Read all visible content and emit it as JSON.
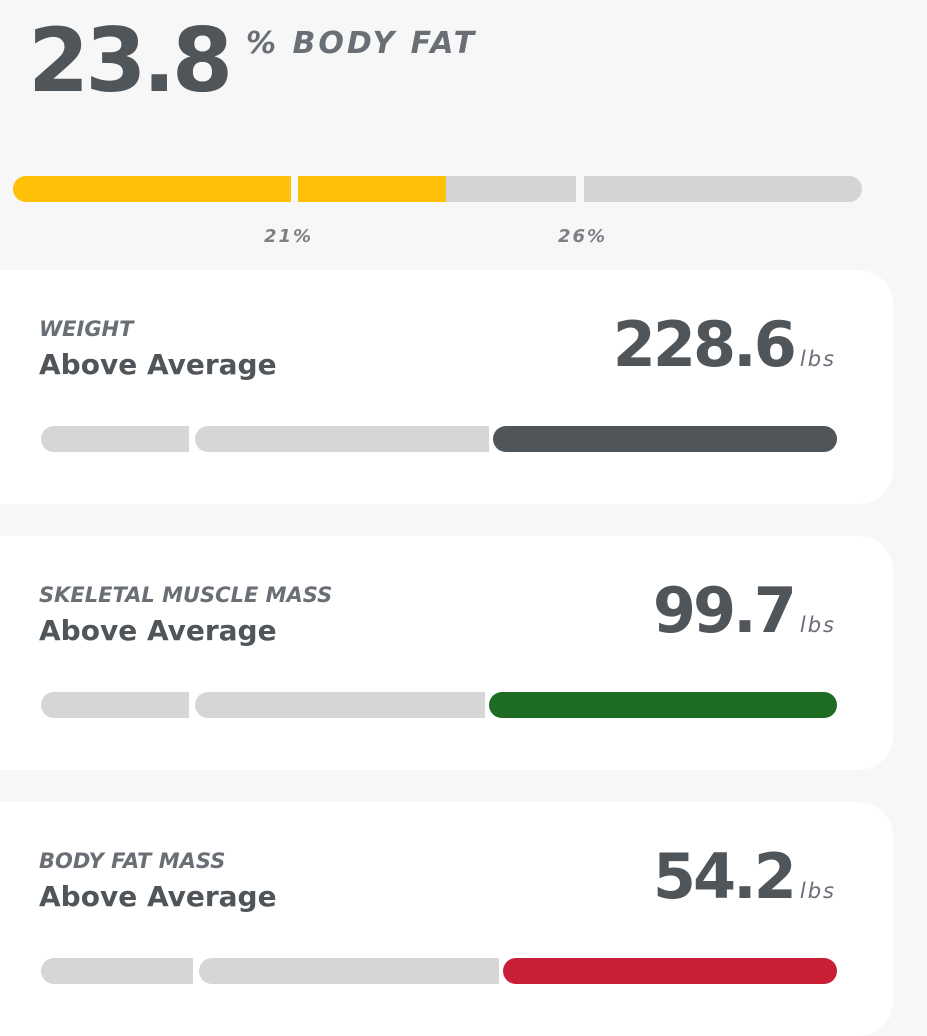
{
  "summary": {
    "value": "23.8",
    "label": "% BODY FAT",
    "fill_percent": 51,
    "fill_color": "#ffc107",
    "ticks": [
      "21%",
      "26%"
    ]
  },
  "metrics": [
    {
      "title": "WEIGHT",
      "status": "Above Average",
      "value": "228.6",
      "unit": "lbs",
      "color": "#50555a"
    },
    {
      "title": "SKELETAL MUSCLE MASS",
      "status": "Above Average",
      "value": "99.7",
      "unit": "lbs",
      "color": "#1e6b24"
    },
    {
      "title": "BODY FAT MASS",
      "status": "Above Average",
      "value": "54.2",
      "unit": "lbs",
      "color": "#c81e36"
    }
  ]
}
